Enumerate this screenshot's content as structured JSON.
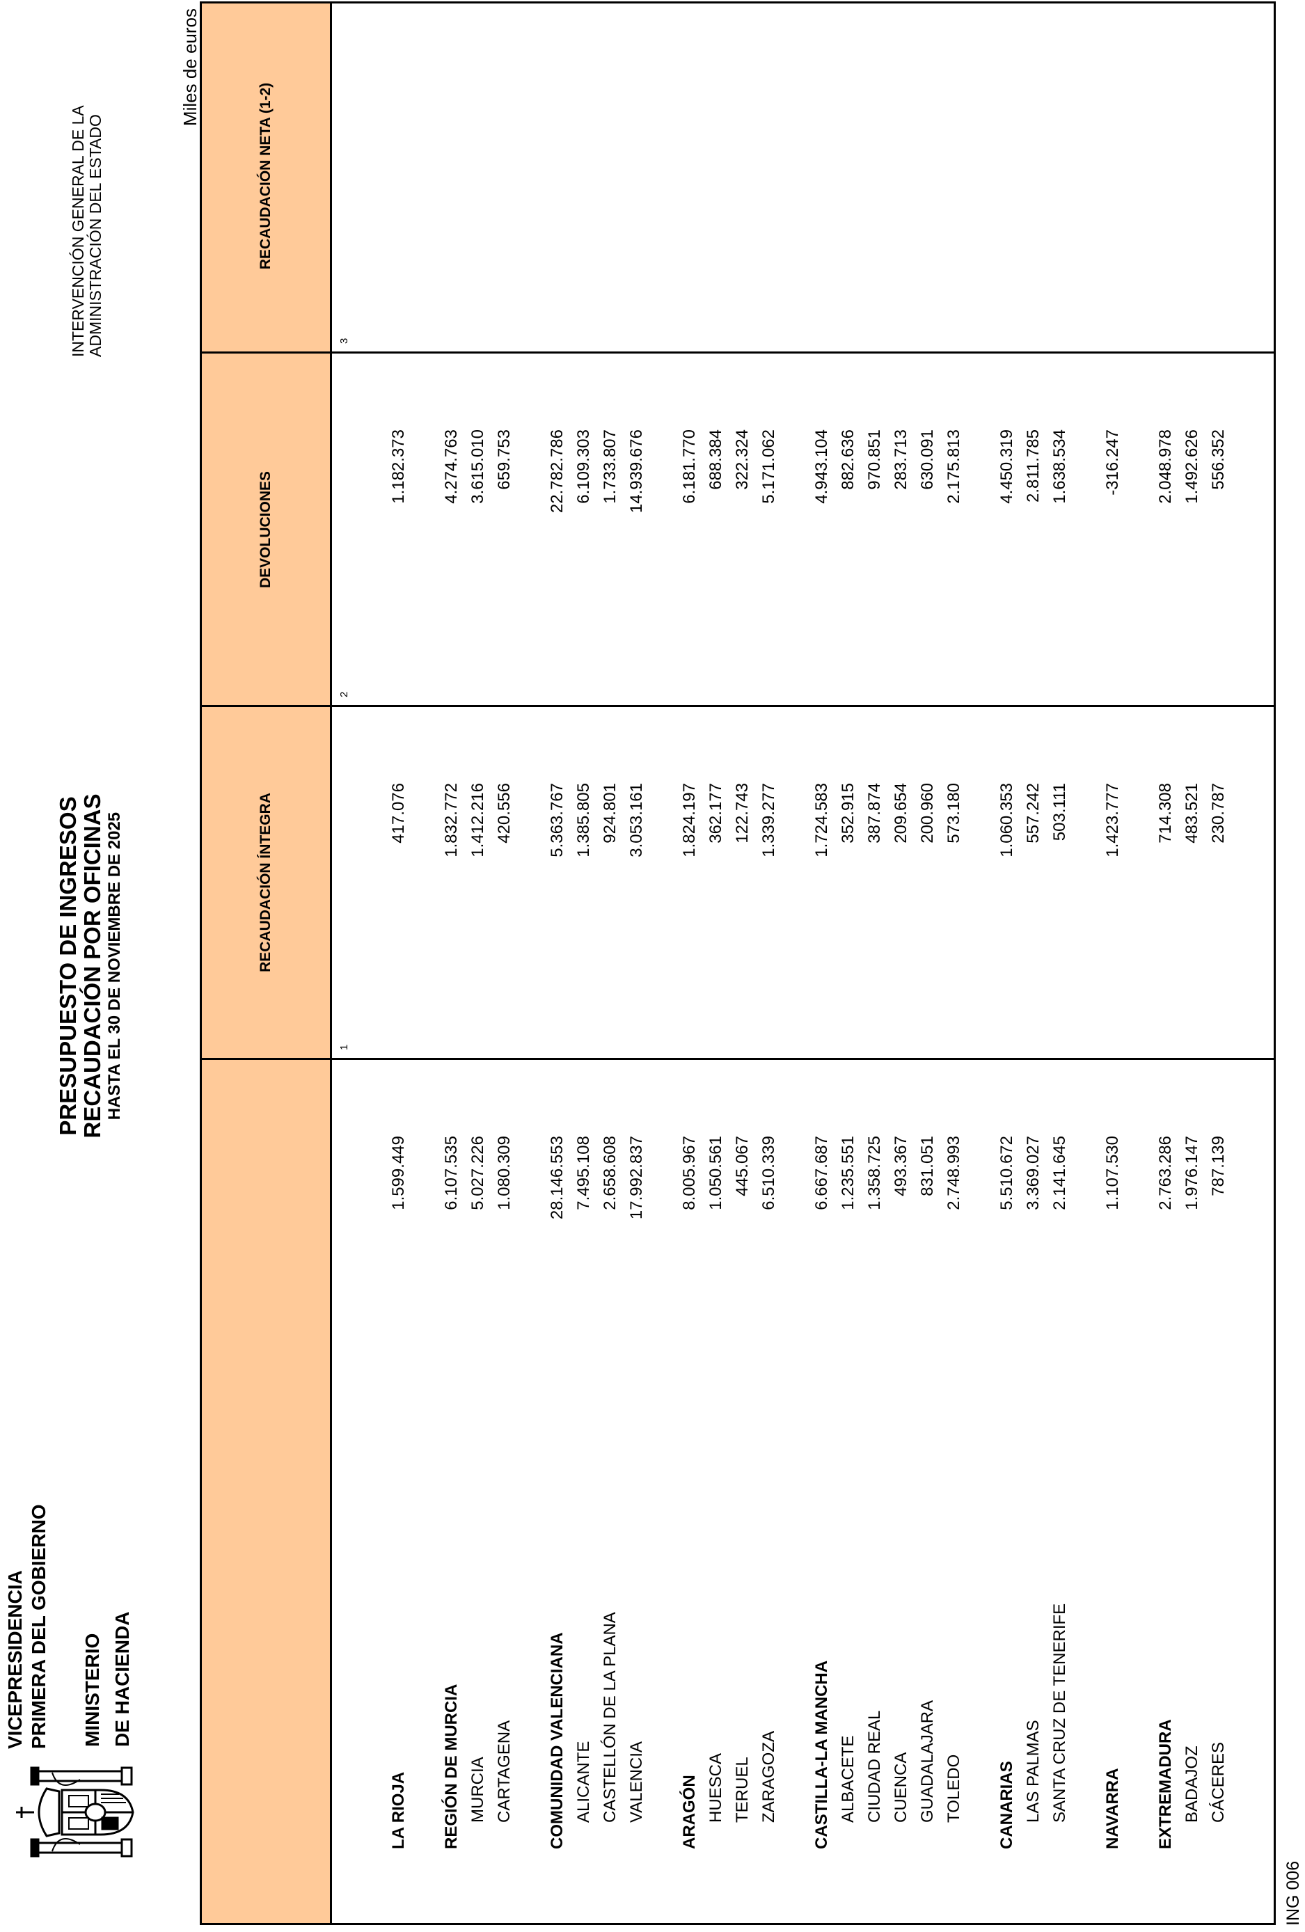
{
  "header": {
    "org_line1": "VICEPRESIDENCIA",
    "org_line2": "PRIMERA DEL GOBIERNO",
    "ministry_line1": "MINISTERIO",
    "ministry_line2": "DE HACIENDA",
    "title": "PRESUPUESTO DE INGRESOS",
    "subtitle": "RECAUDACIÓN POR OFICINAS",
    "date_line": "HASTA EL 30 DE NOVIEMBRE DE 2025",
    "agency_line1": "INTERVENCIÓN GENERAL DE LA",
    "agency_line2": "ADMINISTRACIÓN DEL ESTADO",
    "units": "Miles de euros",
    "emblem": "coat-of-arms-of-spain"
  },
  "table": {
    "header_color": "#FFCA99",
    "columns": [
      {
        "label": "RECAUDACIÓN ÍNTEGRA",
        "num": "1"
      },
      {
        "label": "DEVOLUCIONES",
        "num": "2"
      },
      {
        "label": "RECAUDACIÓN NETA (1-2)",
        "num": "3"
      }
    ],
    "groups": [
      {
        "name": "LA RIOJA",
        "values": [
          "1.599.449",
          "417.076",
          "1.182.373"
        ],
        "items": []
      },
      {
        "name": "REGIÓN DE MURCIA",
        "values": [
          "6.107.535",
          "1.832.772",
          "4.274.763"
        ],
        "items": [
          {
            "name": "MURCIA",
            "values": [
              "5.027.226",
              "1.412.216",
              "3.615.010"
            ]
          },
          {
            "name": "CARTAGENA",
            "values": [
              "1.080.309",
              "420.556",
              "659.753"
            ]
          }
        ]
      },
      {
        "name": "COMUNIDAD VALENCIANA",
        "values": [
          "28.146.553",
          "5.363.767",
          "22.782.786"
        ],
        "items": [
          {
            "name": "ALICANTE",
            "values": [
              "7.495.108",
              "1.385.805",
              "6.109.303"
            ]
          },
          {
            "name": "CASTELLÓN DE LA PLANA",
            "values": [
              "2.658.608",
              "924.801",
              "1.733.807"
            ]
          },
          {
            "name": "VALENCIA",
            "values": [
              "17.992.837",
              "3.053.161",
              "14.939.676"
            ]
          }
        ]
      },
      {
        "name": "ARAGÓN",
        "values": [
          "8.005.967",
          "1.824.197",
          "6.181.770"
        ],
        "items": [
          {
            "name": "HUESCA",
            "values": [
              "1.050.561",
              "362.177",
              "688.384"
            ]
          },
          {
            "name": "TERUEL",
            "values": [
              "445.067",
              "122.743",
              "322.324"
            ]
          },
          {
            "name": "ZARAGOZA",
            "values": [
              "6.510.339",
              "1.339.277",
              "5.171.062"
            ]
          }
        ]
      },
      {
        "name": "CASTILLA-LA MANCHA",
        "values": [
          "6.667.687",
          "1.724.583",
          "4.943.104"
        ],
        "items": [
          {
            "name": "ALBACETE",
            "values": [
              "1.235.551",
              "352.915",
              "882.636"
            ]
          },
          {
            "name": "CIUDAD REAL",
            "values": [
              "1.358.725",
              "387.874",
              "970.851"
            ]
          },
          {
            "name": "CUENCA",
            "values": [
              "493.367",
              "209.654",
              "283.713"
            ]
          },
          {
            "name": "GUADALAJARA",
            "values": [
              "831.051",
              "200.960",
              "630.091"
            ]
          },
          {
            "name": "TOLEDO",
            "values": [
              "2.748.993",
              "573.180",
              "2.175.813"
            ]
          }
        ]
      },
      {
        "name": "CANARIAS",
        "values": [
          "5.510.672",
          "1.060.353",
          "4.450.319"
        ],
        "items": [
          {
            "name": "LAS PALMAS",
            "values": [
              "3.369.027",
              "557.242",
              "2.811.785"
            ]
          },
          {
            "name": "SANTA CRUZ DE TENERIFE",
            "values": [
              "2.141.645",
              "503.111",
              "1.638.534"
            ]
          }
        ]
      },
      {
        "name": "NAVARRA",
        "values": [
          "1.107.530",
          "1.423.777",
          "-316.247"
        ],
        "items": []
      },
      {
        "name": "EXTREMADURA",
        "values": [
          "2.763.286",
          "714.308",
          "2.048.978"
        ],
        "items": [
          {
            "name": "BADAJOZ",
            "values": [
              "1.976.147",
              "483.521",
              "1.492.626"
            ]
          },
          {
            "name": "CÁCERES",
            "values": [
              "787.139",
              "230.787",
              "556.352"
            ]
          }
        ]
      }
    ]
  },
  "footer": {
    "code": "ING 006"
  }
}
